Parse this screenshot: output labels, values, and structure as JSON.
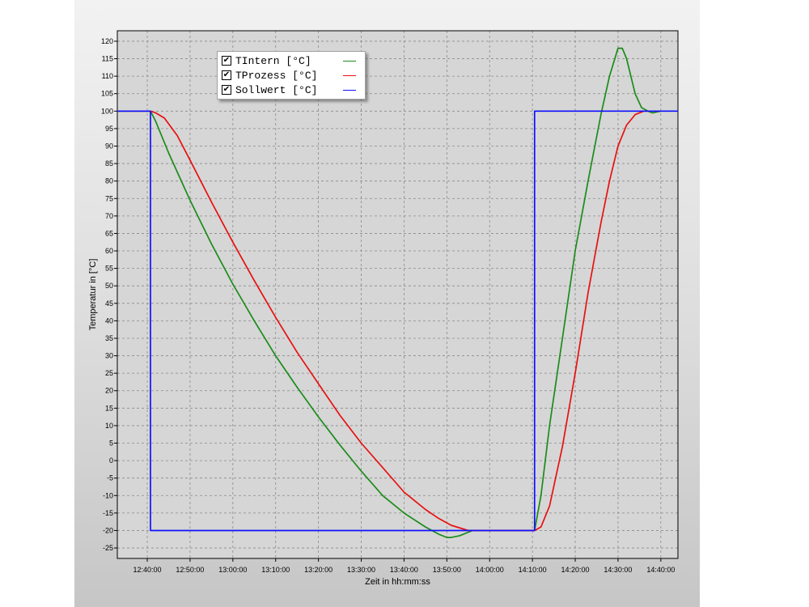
{
  "chart_data": {
    "type": "line",
    "title": "",
    "xlabel": "Zeit in hh:mm:ss",
    "ylabel": "Temperatur in [°C]",
    "x_ticks": [
      "12:40:00",
      "12:50:00",
      "13:00:00",
      "13:10:00",
      "13:20:00",
      "13:30:00",
      "13:40:00",
      "13:50:00",
      "14:00:00",
      "14:10:00",
      "14:20:00",
      "14:30:00",
      "14:40:00"
    ],
    "y_ticks": [
      "120",
      "115",
      "110",
      "105",
      "100",
      "95",
      "90",
      "85",
      "80",
      "75",
      "70",
      "65",
      "60",
      "55",
      "50",
      "45",
      "40",
      "35",
      "30",
      "25",
      "20",
      "15",
      "10",
      "5",
      "0",
      "-5",
      "-10",
      "-15",
      "-20",
      "-25"
    ],
    "xlim": [
      "12:33:00",
      "14:44:00"
    ],
    "ylim": [
      -28,
      123
    ],
    "grid": true,
    "legend_position": "top-left",
    "series": [
      {
        "name": "TIntern [°C]",
        "color": "#1a8c1a",
        "points": [
          [
            "12:33:00",
            100
          ],
          [
            "12:40:45",
            100
          ],
          [
            "12:42:00",
            97
          ],
          [
            "12:45:00",
            88
          ],
          [
            "12:50:00",
            74.5
          ],
          [
            "12:55:00",
            62
          ],
          [
            "13:00:00",
            50.5
          ],
          [
            "13:05:00",
            40
          ],
          [
            "13:10:00",
            30
          ],
          [
            "13:15:00",
            21
          ],
          [
            "13:20:00",
            12.5
          ],
          [
            "13:25:00",
            4.5
          ],
          [
            "13:30:00",
            -3
          ],
          [
            "13:35:00",
            -10
          ],
          [
            "13:40:00",
            -15
          ],
          [
            "13:45:00",
            -19
          ],
          [
            "13:48:00",
            -21
          ],
          [
            "13:50:00",
            -22
          ],
          [
            "13:51:00",
            -22
          ],
          [
            "13:53:00",
            -21.5
          ],
          [
            "13:56:00",
            -20
          ],
          [
            "14:00:00",
            -20
          ],
          [
            "14:10:30",
            -20
          ],
          [
            "14:12:00",
            -10
          ],
          [
            "14:14:00",
            10
          ],
          [
            "14:17:00",
            35
          ],
          [
            "14:20:00",
            60
          ],
          [
            "14:23:00",
            80
          ],
          [
            "14:26:00",
            99
          ],
          [
            "14:28:00",
            110
          ],
          [
            "14:30:00",
            118
          ],
          [
            "14:31:00",
            118
          ],
          [
            "14:32:00",
            115
          ],
          [
            "14:34:00",
            105
          ],
          [
            "14:35:30",
            101
          ],
          [
            "14:37:00",
            100
          ],
          [
            "14:38:00",
            99.5
          ],
          [
            "14:40:00",
            100
          ]
        ]
      },
      {
        "name": "TProzess [°C]",
        "color": "#e81010",
        "points": [
          [
            "12:33:00",
            100
          ],
          [
            "12:40:45",
            100
          ],
          [
            "12:42:00",
            99.5
          ],
          [
            "12:44:00",
            98
          ],
          [
            "12:47:00",
            93
          ],
          [
            "12:50:00",
            86
          ],
          [
            "12:55:00",
            74
          ],
          [
            "13:00:00",
            62.5
          ],
          [
            "13:05:00",
            51.5
          ],
          [
            "13:10:00",
            41
          ],
          [
            "13:15:00",
            31
          ],
          [
            "13:20:00",
            22
          ],
          [
            "13:25:00",
            13
          ],
          [
            "13:30:00",
            5
          ],
          [
            "13:35:00",
            -2
          ],
          [
            "13:40:00",
            -9
          ],
          [
            "13:45:00",
            -14
          ],
          [
            "13:48:00",
            -16.5
          ],
          [
            "13:51:00",
            -18.5
          ],
          [
            "13:55:00",
            -20
          ],
          [
            "14:00:00",
            -20
          ],
          [
            "14:10:30",
            -20
          ],
          [
            "14:12:00",
            -19
          ],
          [
            "14:14:00",
            -13
          ],
          [
            "14:17:00",
            4
          ],
          [
            "14:20:00",
            25
          ],
          [
            "14:23:00",
            48
          ],
          [
            "14:26:00",
            68
          ],
          [
            "14:28:00",
            80
          ],
          [
            "14:30:00",
            90
          ],
          [
            "14:32:00",
            96
          ],
          [
            "14:34:00",
            99
          ],
          [
            "14:36:00",
            100
          ],
          [
            "14:40:00",
            100
          ]
        ]
      },
      {
        "name": "Sollwert [°C]",
        "color": "#1010ff",
        "points": [
          [
            "12:33:00",
            100
          ],
          [
            "12:40:45",
            100
          ],
          [
            "12:40:45",
            -20
          ],
          [
            "14:10:30",
            -20
          ],
          [
            "14:10:30",
            100
          ],
          [
            "14:44:00",
            100
          ]
        ]
      }
    ]
  },
  "legend": {
    "items": [
      {
        "label": "TIntern [°C]",
        "checked": "✔",
        "color": "#1a8c1a"
      },
      {
        "label": "TProzess [°C]",
        "checked": "✔",
        "color": "#e81010"
      },
      {
        "label": "Sollwert [°C]",
        "checked": "✔",
        "color": "#1010ff"
      }
    ]
  }
}
